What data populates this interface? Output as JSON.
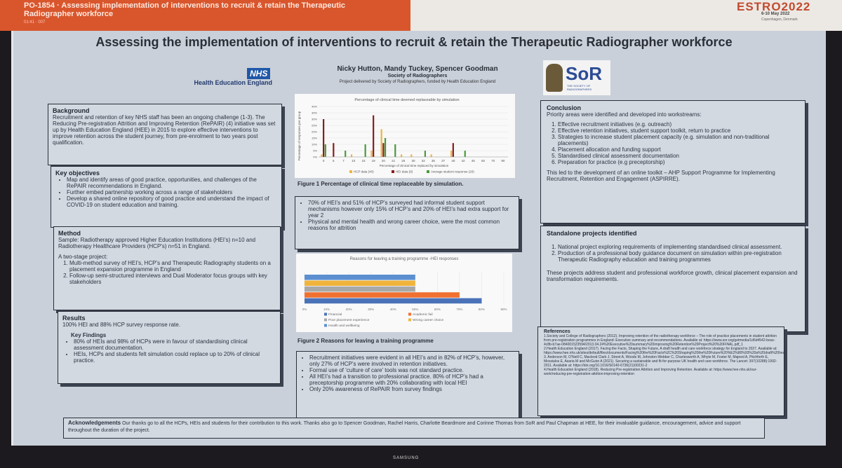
{
  "header": {
    "title": "PO-1854 · Assessing implementation of interventions to recruit & retain the Therapeutic Radiographer workforce",
    "sub": "01:41 · 007",
    "estro_logo": "ESTRO2022",
    "date": "6-10 May 2022",
    "location": "Copenhagen, Denmark"
  },
  "poster": {
    "title": "Assessing the implementation of interventions to recruit & retain the Therapeutic Radiographer workforce",
    "authors": "Nicky Hutton, Mandy Tuckey, Spencer Goodman",
    "society": "Society of Radiographers",
    "project": "Project delivered by Society of Radiographers, funded by Health Education England",
    "nhs_logo": "NHS",
    "nhs_org": "Health Education England",
    "sor_logo": "SoR",
    "sor_sub": "THE SOCIETY OF RADIOGRAPHERS"
  },
  "background": {
    "heading": "Background",
    "text": "Recruitment and retention of key NHS staff has been an ongoing challenge (1-3). The Reducing Pre-registration Attrition and Improving Retention (RePAIR) (4) initiative was set up by Health Education England (HEE) in 2015 to explore effective interventions to improve retention across the student journey, from pre-enrolment to two years post qualification."
  },
  "objectives": {
    "heading": "Key objectives",
    "items": [
      "Map and identify areas of good practice, opportunities, and challenges of the RePAIR recommendations in England.",
      "Further embed partnership working across a range of stakeholders",
      "Develop a shared online repository of good practice and understand the impact of COVID-19 on student education and training."
    ]
  },
  "method": {
    "heading": "Method",
    "sample": "Sample: Radiotherapy approved Higher Education Institutions (HEI’s) n=10 and Radiotherapy Healthcare Providers (HCP’s) n=51 in England.",
    "intro": "A two-stage project:",
    "steps": [
      "Multi-method survey of HEI’s, HCP’s and Therapeutic Radiography students on a placement expansion programme in England",
      "Follow-up semi-structured interviews and Dual Moderator focus groups with key stakeholders"
    ]
  },
  "results": {
    "heading": "Results",
    "rate": "100% HEI and 88% HCP survey response rate.",
    "findings_heading": "Key Findings",
    "items": [
      "80% of HEIs and 98% of HCPs were in favour of standardising clinical assessment documentation.",
      "HEIs, HCPs and students felt simulation could replace up to 20% of clinical practice."
    ]
  },
  "figure1": {
    "caption": "Figure 1 Percentage of clinical time replaceable by simulation.",
    "notes": [
      "70% of HEI’s and 51% of HCP’s surveyed had informal student support mechanisms however only 15% of HCP’s and 20% of HEI’s had extra support for year 2",
      "Physical and mental health and wrong career choice, were the most common reasons for attrition"
    ]
  },
  "figure2": {
    "caption": "Figure 2 Reasons for leaving a training programme",
    "notes": [
      "Recruitment initiatives were evident in all HEI’s and in 82% of HCP’s, however, only 27% of HCP’s were involved in retention initiatives.",
      "Formal use of ‘culture of care’ tools was not standard practice.",
      "All HEI’s had a transition to professional practice. 80% of HCP’s had a preceptorship programme with 20% collaborating with local HEI",
      "Only 20% awareness of RePAIR from survey findings"
    ]
  },
  "conclusion": {
    "heading": "Conclusion",
    "intro": "Priority areas were identified and developed into workstreams:",
    "items": [
      "Effective recruitment initiatives (e.g. outreach)",
      "Effective retention initiatives, student support toolkit, return to practice",
      "Strategies to increase student placement capacity (e.g. simulation and non-traditional placements)",
      "Placement allocation and funding support",
      "Standardised clinical assessment documentation",
      "Preparation for practice (e.g preceptorship)"
    ],
    "outro": "This led to the development of an online toolkit – AHP Support Programme for Implementing Recruitment, Retention and Engagement (ASPIRRE)."
  },
  "standalone": {
    "heading": "Standalone projects identified",
    "items": [
      "National project exploring requirements of implementing standardised clinical assessment.",
      "Production of a professional body guidance document on simulation within pre-registration Therapeutic Radiography education and training programmes"
    ],
    "outro": "These projects address student and professional workforce growth, clinical placement expansion and transformation requirements."
  },
  "references": {
    "heading": "References",
    "items": [
      "1.Society and College of Radiographers (2012). Improving retention of the radiotherapy workforce – The role of practice placements in student attrition from pre-registration programmes in England: Executive summary and recommendations. Available at: https://www.sor.org/getmedia/1d6d4542-beac-4c8b-b7ae-084001523594/2013.04.24%20Executive%20summary%20improving%20Retention%20Project%20%20FINAL.pdf_1",
      "2.Health Education England (2017). Facing the Facts, Shaping the Future, A draft health and care workforce strategy for England to 2027. Available at: https://www.hee.nhs.uk/sites/default/files/documents/Facing%20the%20Facts%2C%20Shaping%20the%20Future%20%E2%80%93%20a%20draft%20health%20and%20care%20workfo",
      "3. Anderson M, O’Neill C, Macleod Clark J, Street A, Woods M, Johnston-Webber C, Charlesworth A, Whyte M, Foster M, Majeed A, Pitchforth E, Mossialos E, Asaria M and McGuire A (2021). Securing a sustainable and fit-for-purpose UK health and care workforce. The Lancet: 397(10288):1992-2011. Available at: https://doi.org/10.1016/S0140-6736(21)00231-2",
      "4.Health Education England (2018). Reducing Pre-registration Attrition and Improving Retention. Available at: https://www.hee.nhs.uk/our-work/reducing-pre-registration-attrition-improving-retention"
    ]
  },
  "acknowledgements": {
    "heading": "Acknowledgements",
    "text": "Our thanks go to all the HCPs, HEIs and students for their contribution to this work. Thanks also go to Spencer Goodman, Rachel Harris, Charlotte Beardmore and Corinne Thomas from SoR and Paul Chapman at HEE, for their invaluable guidance, encouragement, advice and support throughout the duration of the project."
  },
  "monitor": {
    "brand": "SAMSUNG"
  },
  "chart_data": [
    {
      "type": "bar",
      "title": "Percentage of clinical time deemed replaceable by simulation",
      "xlabel": "Percentage of clinical time replaced by simulation",
      "ylabel": "Percentage of responses per group",
      "categories": [
        "0",
        "5",
        "7",
        "10",
        "15",
        "19",
        "20",
        "21",
        "25",
        "30",
        "32",
        "35",
        "37",
        "40",
        "42",
        "45",
        "50",
        "70",
        "90"
      ],
      "ylim": [
        0,
        40
      ],
      "yticks": [
        "0%",
        "5%",
        "10%",
        "15%",
        "20%",
        "25%",
        "30%",
        "35%",
        "40%"
      ],
      "series": [
        {
          "name": "HCP data (40)",
          "color": "#f0b43c",
          "values": [
            2,
            0,
            0,
            2,
            0,
            5,
            22,
            0,
            2,
            2,
            0,
            2,
            0,
            5,
            0,
            0,
            0,
            0,
            0
          ]
        },
        {
          "name": "HEI data (9)",
          "color": "#8a1c1c",
          "values": [
            30,
            11,
            0,
            0,
            0,
            33,
            11,
            0,
            0,
            0,
            0,
            0,
            0,
            11,
            0,
            0,
            0,
            0,
            0
          ]
        },
        {
          "name": "Average student response (20)",
          "color": "#4a9a3c",
          "values": [
            10,
            0,
            5,
            0,
            10,
            0,
            15,
            10,
            0,
            0,
            5,
            0,
            0,
            0,
            5,
            0,
            0,
            0,
            0
          ]
        }
      ]
    },
    {
      "type": "bar",
      "orientation": "horizontal",
      "title": "Reasons for leaving a training programme -HEI responses",
      "categories": [
        "Financial",
        "Academic fail",
        "Poor placement experience",
        "Wrong career choice",
        "Health and wellbeing"
      ],
      "values": [
        80,
        70,
        50,
        50,
        50
      ],
      "colors": [
        "#4a72b8",
        "#f07030",
        "#a8a8a8",
        "#f0b43c",
        "#5b8fd0"
      ],
      "xlim": [
        0,
        90
      ],
      "xticks": [
        "0%",
        "10%",
        "20%",
        "30%",
        "40%",
        "50%",
        "60%",
        "70%",
        "80%",
        "90%"
      ]
    }
  ]
}
